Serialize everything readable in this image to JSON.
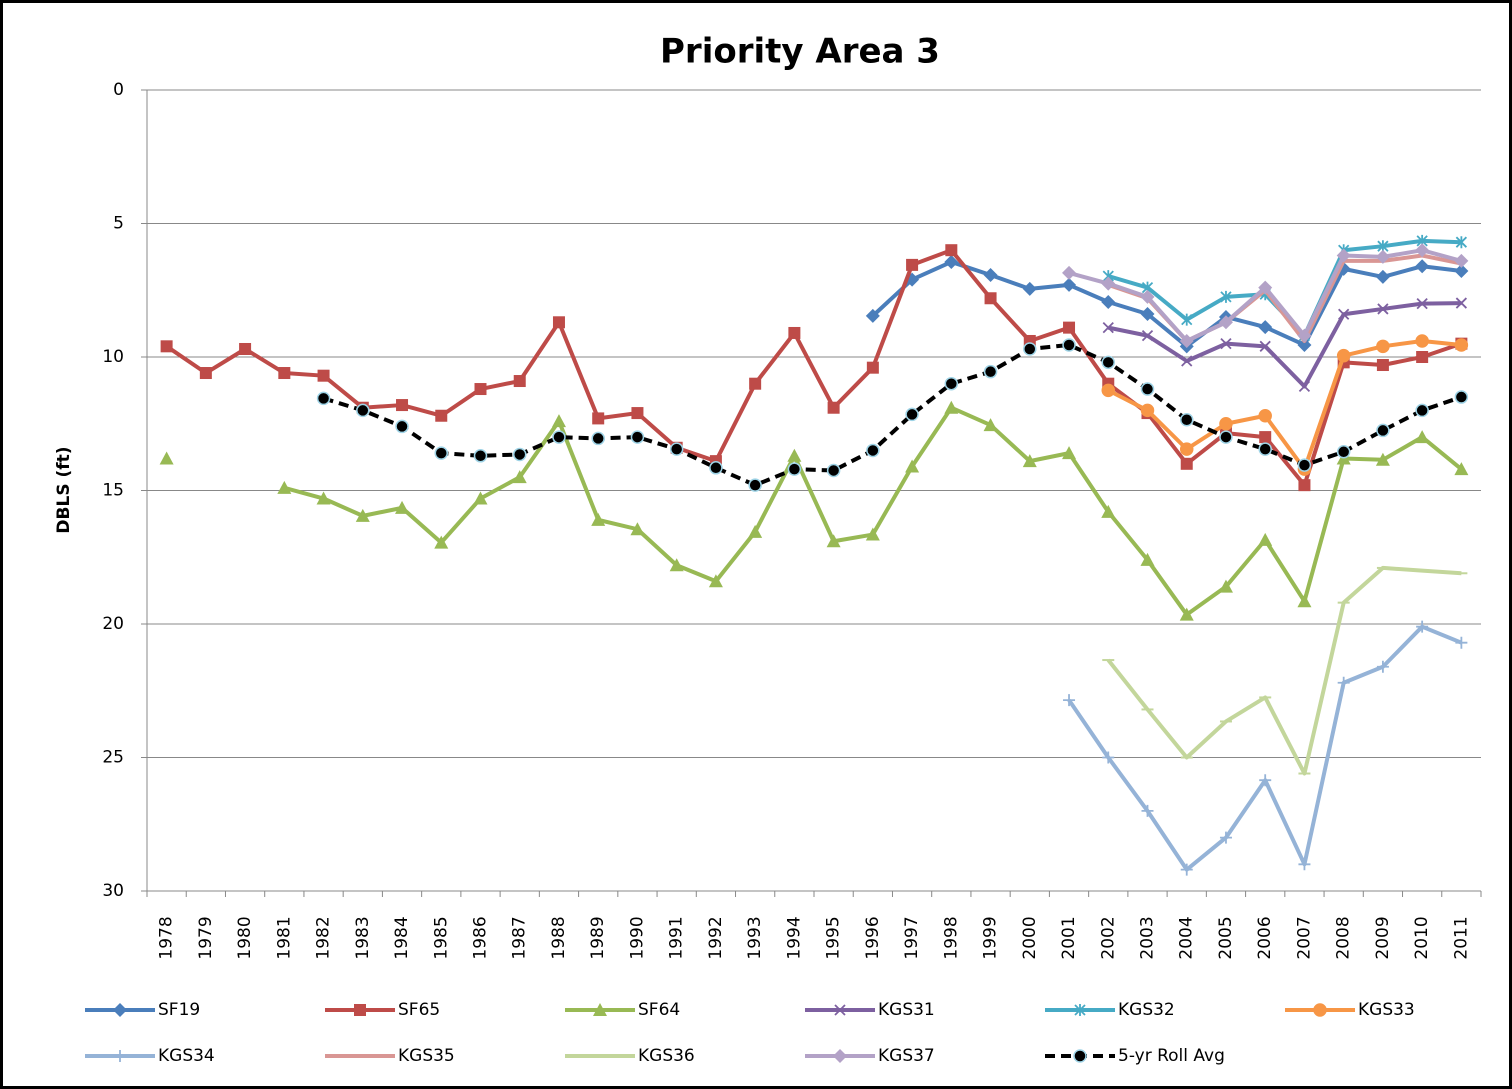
{
  "chart_data": {
    "type": "line",
    "title": "Priority Area 3",
    "y_label": "DBLS (ft)",
    "categories": [
      "1978",
      "1979",
      "1980",
      "1981",
      "1982",
      "1983",
      "1984",
      "1985",
      "1986",
      "1987",
      "1988",
      "1989",
      "1990",
      "1991",
      "1992",
      "1993",
      "1994",
      "1995",
      "1996",
      "1997",
      "1998",
      "1999",
      "2000",
      "2001",
      "2002",
      "2003",
      "2004",
      "2005",
      "2006",
      "2007",
      "2008",
      "2009",
      "2010",
      "2011"
    ],
    "ylim": [
      0,
      30
    ],
    "yticks": [
      0,
      5,
      10,
      15,
      20,
      25,
      30
    ],
    "y_inverted": true,
    "grid": true,
    "legend": "bottom",
    "series": [
      {
        "name": "SF19",
        "color": "#4a7ebb",
        "marker": "diamond",
        "values": [
          null,
          null,
          null,
          null,
          null,
          null,
          null,
          null,
          null,
          null,
          null,
          null,
          null,
          null,
          null,
          null,
          null,
          null,
          8.46,
          7.1,
          6.44,
          6.93,
          7.45,
          7.3,
          7.94,
          8.39,
          9.6,
          8.5,
          8.88,
          9.55,
          6.7,
          7.0,
          6.6,
          6.78
        ]
      },
      {
        "name": "SF65",
        "color": "#be4b48",
        "marker": "square",
        "values": [
          9.6,
          10.6,
          9.7,
          10.6,
          10.7,
          11.9,
          11.8,
          12.2,
          11.2,
          10.9,
          8.7,
          12.3,
          12.1,
          13.4,
          13.9,
          11.0,
          9.1,
          11.9,
          10.4,
          6.55,
          6.0,
          7.8,
          9.4,
          8.9,
          11.0,
          12.1,
          14.0,
          12.85,
          13.0,
          14.8,
          10.2,
          10.3,
          10.0,
          9.5
        ]
      },
      {
        "name": "SF64",
        "color": "#98b954",
        "marker": "triangle",
        "values": [
          13.8,
          null,
          null,
          14.9,
          15.3,
          15.95,
          15.65,
          16.95,
          15.3,
          14.5,
          12.4,
          16.1,
          16.45,
          17.8,
          18.4,
          16.55,
          13.7,
          16.9,
          16.65,
          14.1,
          11.9,
          12.55,
          13.9,
          13.6,
          15.8,
          17.6,
          19.65,
          18.6,
          16.85,
          19.15,
          13.8,
          13.85,
          13.0,
          14.2
        ]
      },
      {
        "name": "KGS31",
        "color": "#7d60a0",
        "marker": "x",
        "values": [
          null,
          null,
          null,
          null,
          null,
          null,
          null,
          null,
          null,
          null,
          null,
          null,
          null,
          null,
          null,
          null,
          null,
          null,
          null,
          null,
          null,
          null,
          null,
          null,
          8.9,
          9.2,
          10.15,
          9.5,
          9.6,
          11.1,
          8.4,
          8.2,
          8.0,
          7.98
        ]
      },
      {
        "name": "KGS32",
        "color": "#46aac5",
        "marker": "star",
        "values": [
          null,
          null,
          null,
          null,
          null,
          null,
          null,
          null,
          null,
          null,
          null,
          null,
          null,
          null,
          null,
          null,
          null,
          null,
          null,
          null,
          null,
          null,
          null,
          null,
          6.97,
          7.4,
          8.6,
          7.75,
          7.65,
          9.2,
          6.0,
          5.85,
          5.65,
          5.7
        ]
      },
      {
        "name": "KGS33",
        "color": "#f79646",
        "marker": "circle",
        "values": [
          null,
          null,
          null,
          null,
          null,
          null,
          null,
          null,
          null,
          null,
          null,
          null,
          null,
          null,
          null,
          null,
          null,
          null,
          null,
          null,
          null,
          null,
          null,
          null,
          11.25,
          12.0,
          13.45,
          12.5,
          12.2,
          14.2,
          9.95,
          9.6,
          9.4,
          9.55
        ]
      },
      {
        "name": "KGS34",
        "color": "#95b3d7",
        "marker": "plus",
        "values": [
          null,
          null,
          null,
          null,
          null,
          null,
          null,
          null,
          null,
          null,
          null,
          null,
          null,
          null,
          null,
          null,
          null,
          null,
          null,
          null,
          null,
          null,
          null,
          22.85,
          25.0,
          27.0,
          29.2,
          28.0,
          25.85,
          29.0,
          22.2,
          21.6,
          20.1,
          20.7
        ]
      },
      {
        "name": "KGS35",
        "color": "#d99694",
        "marker": "none",
        "values": [
          null,
          null,
          null,
          null,
          null,
          null,
          null,
          null,
          null,
          null,
          null,
          null,
          null,
          null,
          null,
          null,
          null,
          null,
          null,
          null,
          null,
          null,
          null,
          null,
          7.3,
          7.8,
          9.4,
          8.7,
          7.5,
          9.4,
          6.4,
          6.4,
          6.2,
          6.5
        ]
      },
      {
        "name": "KGS36",
        "color": "#c3d69b",
        "marker": "dash",
        "values": [
          null,
          null,
          null,
          null,
          null,
          null,
          null,
          null,
          null,
          null,
          null,
          null,
          null,
          null,
          null,
          null,
          null,
          null,
          null,
          null,
          null,
          null,
          null,
          null,
          21.35,
          23.2,
          25.0,
          23.65,
          22.75,
          25.6,
          19.2,
          17.9,
          18.0,
          18.1
        ]
      },
      {
        "name": "KGS37",
        "color": "#b3a2c7",
        "marker": "diamond",
        "values": [
          null,
          null,
          null,
          null,
          null,
          null,
          null,
          null,
          null,
          null,
          null,
          null,
          null,
          null,
          null,
          null,
          null,
          null,
          null,
          null,
          null,
          null,
          null,
          6.85,
          7.25,
          7.75,
          9.4,
          8.7,
          7.4,
          9.2,
          6.2,
          6.25,
          6.0,
          6.4
        ]
      },
      {
        "name": "5-yr Roll Avg",
        "color": "#000000",
        "marker": "circle",
        "marker_edge": "#9ed3e6",
        "dashed": true,
        "values": [
          null,
          null,
          null,
          null,
          11.55,
          12.0,
          12.6,
          13.6,
          13.7,
          13.65,
          13.0,
          13.05,
          13.0,
          13.45,
          14.15,
          14.8,
          14.2,
          14.25,
          13.5,
          12.15,
          11.0,
          10.55,
          9.7,
          9.55,
          10.2,
          11.2,
          12.35,
          13.0,
          13.45,
          14.05,
          13.55,
          12.75,
          12.0,
          11.5
        ]
      }
    ]
  }
}
